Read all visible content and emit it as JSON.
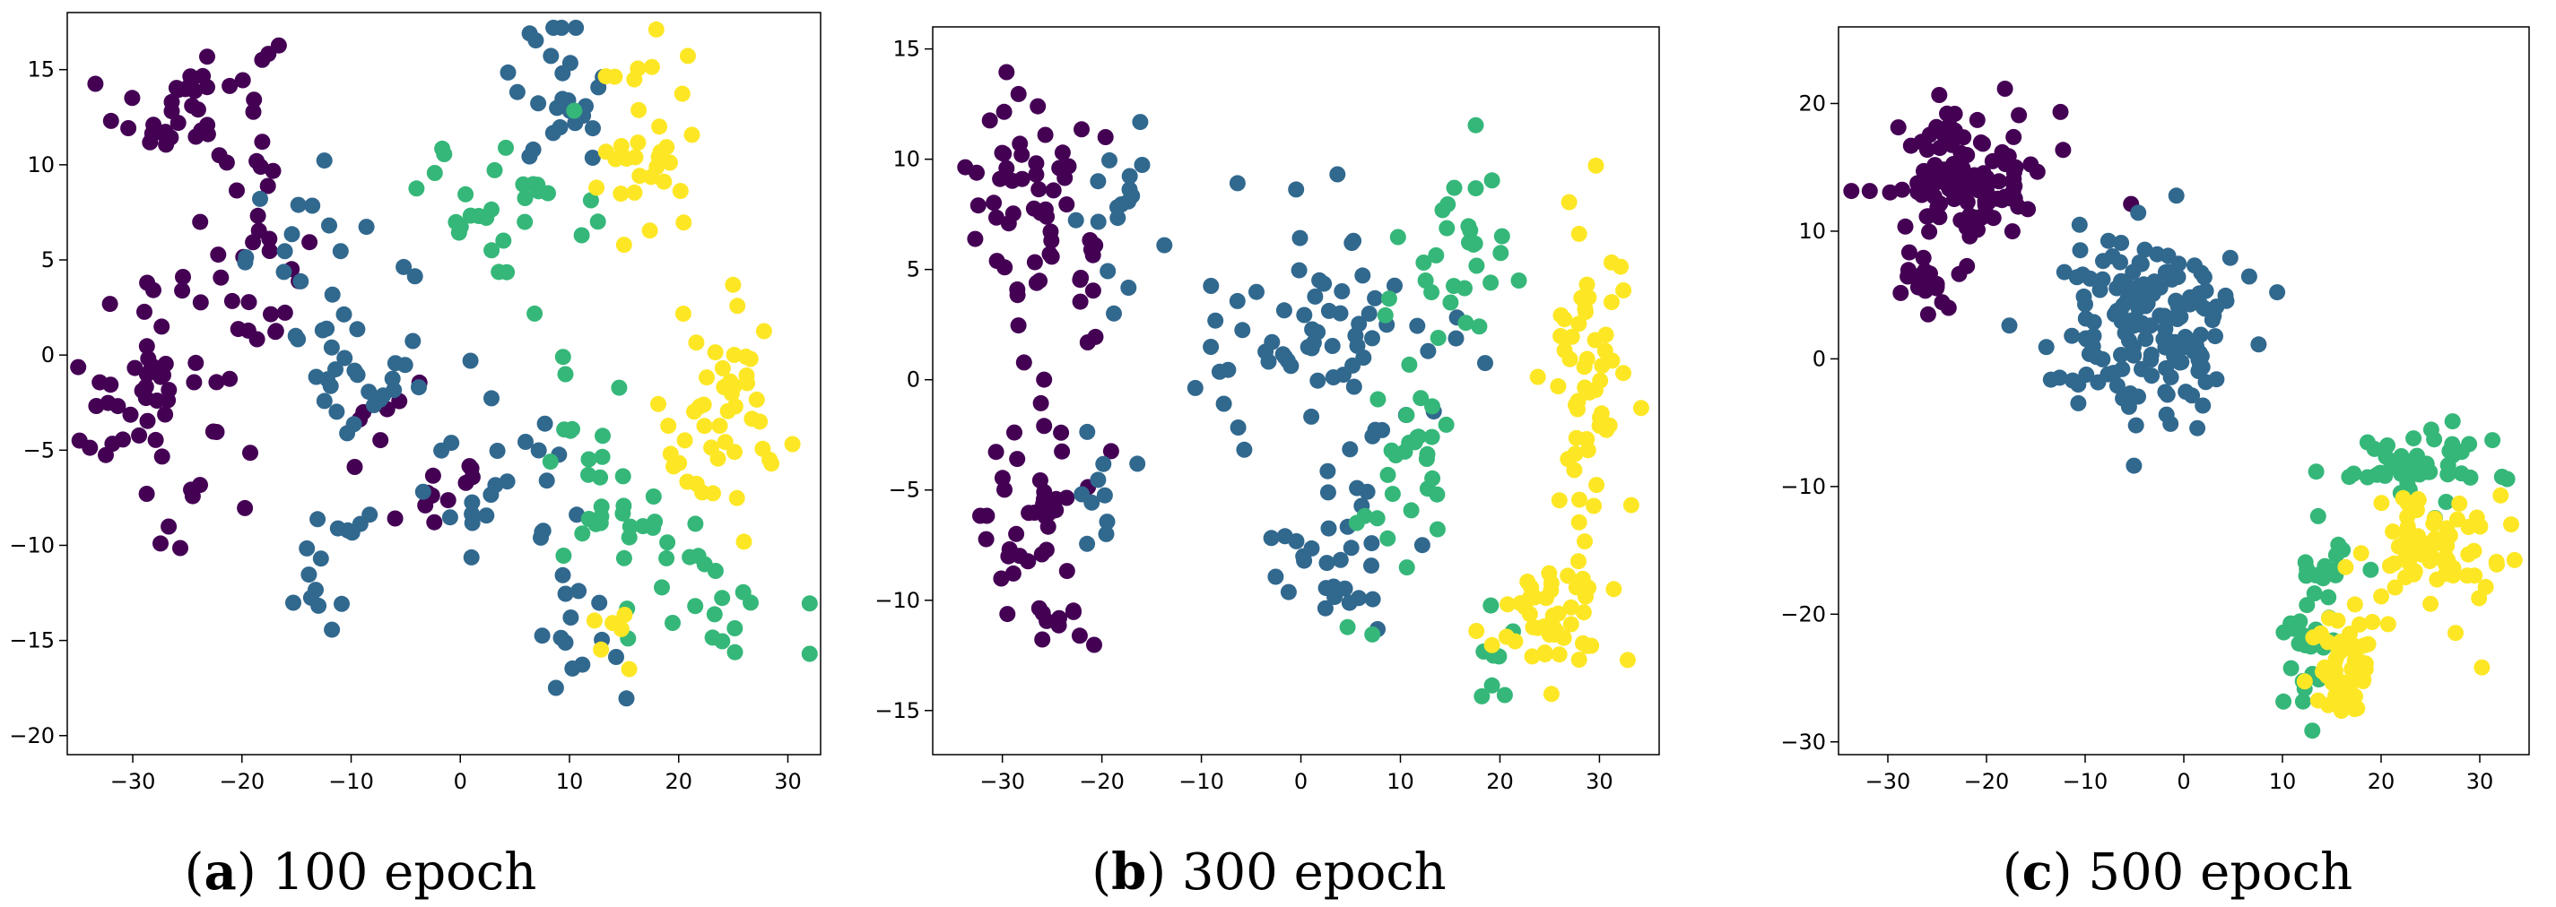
{
  "palette": {
    "purple": "#440154",
    "blue": "#31688e",
    "green": "#35b779",
    "yellow": "#fde725"
  },
  "captions": [
    {
      "letter": "a",
      "text": "100 epoch"
    },
    {
      "letter": "b",
      "text": "300 epoch"
    },
    {
      "letter": "c",
      "text": "500 epoch"
    }
  ],
  "chart_data": [
    {
      "type": "scatter",
      "title": "",
      "xlabel": "",
      "ylabel": "",
      "xlim": [
        -36,
        33
      ],
      "ylim": [
        -21,
        18
      ],
      "xticks": [
        -30,
        -20,
        -10,
        0,
        10,
        20,
        30
      ],
      "yticks": [
        -20,
        -15,
        -10,
        -5,
        0,
        5,
        10,
        15
      ],
      "grid": false,
      "legend": "none",
      "series": [
        {
          "color": "purple",
          "clusters": [
            {
              "cx": -24,
              "cy": 13,
              "sx": 5,
              "sy": 2.8,
              "n": 45
            },
            {
              "cx": -28,
              "cy": -2,
              "sx": 4.5,
              "sy": 5,
              "n": 55
            },
            {
              "cx": -19,
              "cy": 4,
              "sx": 4,
              "sy": 3,
              "n": 20
            },
            {
              "cx": -7,
              "cy": -4,
              "sx": 3,
              "sy": 2,
              "n": 8
            },
            {
              "cx": -2,
              "cy": -8,
              "sx": 4,
              "sy": 3,
              "n": 10
            }
          ]
        },
        {
          "color": "blue",
          "clusters": [
            {
              "cx": 9,
              "cy": 14,
              "sx": 3,
              "sy": 2.5,
              "n": 26
            },
            {
              "cx": -12,
              "cy": 5,
              "sx": 5,
              "sy": 3,
              "n": 22
            },
            {
              "cx": -8,
              "cy": -2,
              "sx": 5,
              "sy": 2.5,
              "n": 22
            },
            {
              "cx": -12,
              "cy": -11,
              "sx": 4,
              "sy": 2,
              "n": 15
            },
            {
              "cx": 3,
              "cy": -7,
              "sx": 5,
              "sy": 3,
              "n": 24
            },
            {
              "cx": 11,
              "cy": -15,
              "sx": 3,
              "sy": 2.5,
              "n": 14
            }
          ]
        },
        {
          "color": "green",
          "clusters": [
            {
              "cx": 4,
              "cy": 8,
              "sx": 5,
              "sy": 3,
              "n": 30
            },
            {
              "cx": 14,
              "cy": -6,
              "sx": 5,
              "sy": 4,
              "n": 34
            },
            {
              "cx": 24,
              "cy": -13,
              "sx": 4,
              "sy": 2,
              "n": 18
            }
          ]
        },
        {
          "color": "yellow",
          "clusters": [
            {
              "cx": 17,
              "cy": 11,
              "sx": 3,
              "sy": 4,
              "n": 32
            },
            {
              "cx": 24,
              "cy": -4,
              "sx": 4,
              "sy": 4,
              "n": 48
            },
            {
              "cx": 14,
              "cy": -15,
              "sx": 2,
              "sy": 2,
              "n": 6
            }
          ]
        }
      ]
    },
    {
      "type": "scatter",
      "title": "",
      "xlabel": "",
      "ylabel": "",
      "xlim": [
        -37,
        36
      ],
      "ylim": [
        -17,
        16
      ],
      "xticks": [
        -30,
        -20,
        -10,
        0,
        10,
        20,
        30
      ],
      "yticks": [
        -15,
        -10,
        -5,
        0,
        5,
        10,
        15
      ],
      "grid": false,
      "legend": "none",
      "series": [
        {
          "color": "purple",
          "clusters": [
            {
              "cx": -27,
              "cy": 8,
              "sx": 4.5,
              "sy": 4,
              "n": 60
            },
            {
              "cx": -27,
              "cy": -6,
              "sx": 4,
              "sy": 3.5,
              "n": 40
            },
            {
              "cx": -24,
              "cy": -11,
              "sx": 2,
              "sy": 0.8,
              "n": 8
            }
          ]
        },
        {
          "color": "blue",
          "clusters": [
            {
              "cx": -17,
              "cy": 8,
              "sx": 3,
              "sy": 2.5,
              "n": 16
            },
            {
              "cx": -19,
              "cy": -5,
              "sx": 2.5,
              "sy": 1.5,
              "n": 10
            },
            {
              "cx": 2,
              "cy": 2,
              "sx": 9,
              "sy": 4,
              "n": 70
            },
            {
              "cx": 4,
              "cy": -8,
              "sx": 4,
              "sy": 2.5,
              "n": 28
            }
          ]
        },
        {
          "color": "green",
          "clusters": [
            {
              "cx": 16,
              "cy": 6,
              "sx": 5,
              "sy": 3,
              "n": 30
            },
            {
              "cx": 11,
              "cy": -5,
              "sx": 5,
              "sy": 4,
              "n": 30
            },
            {
              "cx": 20,
              "cy": -13,
              "sx": 3,
              "sy": 1.5,
              "n": 8
            }
          ]
        },
        {
          "color": "yellow",
          "clusters": [
            {
              "cx": 29,
              "cy": 1,
              "sx": 2.5,
              "sy": 5,
              "n": 55
            },
            {
              "cx": 26,
              "cy": -11,
              "sx": 4,
              "sy": 2.5,
              "n": 50
            }
          ]
        }
      ]
    },
    {
      "type": "scatter",
      "title": "",
      "xlabel": "",
      "ylabel": "",
      "xlim": [
        -35,
        35
      ],
      "ylim": [
        -31,
        26
      ],
      "xticks": [
        -30,
        -20,
        -10,
        0,
        10,
        20,
        30
      ],
      "yticks": [
        -30,
        -20,
        -10,
        0,
        10,
        20
      ],
      "grid": false,
      "legend": "none",
      "series": [
        {
          "color": "purple",
          "clusters": [
            {
              "cx": -22,
              "cy": 14,
              "sx": 5,
              "sy": 4,
              "n": 110
            },
            {
              "cx": -26,
              "cy": 6,
              "sx": 2,
              "sy": 2,
              "n": 20
            }
          ]
        },
        {
          "color": "blue",
          "clusters": [
            {
              "cx": -4,
              "cy": 3,
              "sx": 6,
              "sy": 5,
              "n": 160
            }
          ]
        },
        {
          "color": "green",
          "clusters": [
            {
              "cx": 24,
              "cy": -8,
              "sx": 5,
              "sy": 1.5,
              "n": 45
            },
            {
              "cx": 15,
              "cy": -16,
              "sx": 2,
              "sy": 2,
              "n": 14
            },
            {
              "cx": 12,
              "cy": -23,
              "sx": 2,
              "sy": 3,
              "n": 22
            }
          ]
        },
        {
          "color": "yellow",
          "clusters": [
            {
              "cx": 25,
              "cy": -15,
              "sx": 4,
              "sy": 3.5,
              "n": 70
            },
            {
              "cx": 17,
              "cy": -24,
              "sx": 2.5,
              "sy": 3,
              "n": 50
            }
          ]
        }
      ]
    }
  ]
}
